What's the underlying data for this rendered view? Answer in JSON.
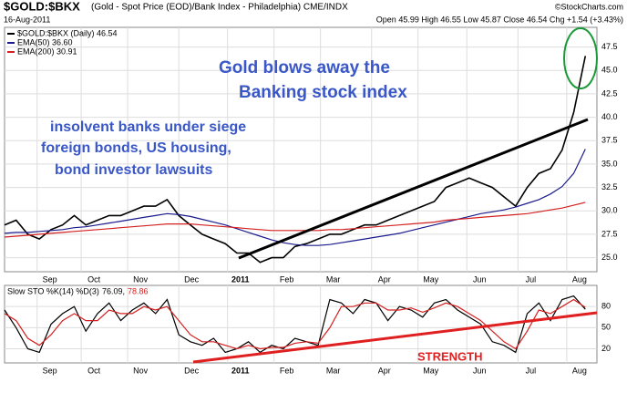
{
  "header": {
    "title": "$GOLD:$BKX",
    "subtitle": "(Gold - Spot Price (EOD)/Bank Index - Philadelphia) CME/INDX",
    "source": "©StockCharts.com",
    "date": "16-Aug-2011",
    "quote": "Open 45.99  High 46.55  Low 45.87  Close 46.54  Chg +1.54 (+3.43%)"
  },
  "chart_data": [
    {
      "type": "line",
      "annotations": [
        "Gold blows away the",
        "Banking stock index",
        "insolvent banks under siege",
        "foreign bonds, US housing,",
        "bond investor lawsuits"
      ],
      "x": [
        0,
        5,
        10,
        15,
        20,
        25,
        30,
        35,
        40,
        45,
        50,
        55,
        60,
        65,
        70,
        75,
        80,
        85,
        90,
        95,
        100,
        105,
        110,
        115,
        120,
        125,
        130,
        135,
        140,
        145,
        150,
        155,
        160,
        165,
        170,
        175,
        180,
        185,
        190,
        195,
        200,
        205,
        210,
        215,
        220,
        225,
        230,
        235,
        240,
        245,
        250
      ],
      "xlim": [
        0,
        255
      ],
      "xticks": [
        {
          "value": 14,
          "label": "Sep"
        },
        {
          "value": 33,
          "label": "Oct"
        },
        {
          "value": 53,
          "label": "Nov"
        },
        {
          "value": 75,
          "label": "Dec"
        },
        {
          "value": 96,
          "label": "2011"
        },
        {
          "value": 116,
          "label": "Feb"
        },
        {
          "value": 136,
          "label": "Mar"
        },
        {
          "value": 158,
          "label": "Apr"
        },
        {
          "value": 178,
          "label": "May"
        },
        {
          "value": 199,
          "label": "Jun"
        },
        {
          "value": 221,
          "label": "Jul"
        },
        {
          "value": 242,
          "label": "Aug"
        }
      ],
      "ylim": [
        23.5,
        49.6
      ],
      "yticks": [
        {
          "value": 25,
          "label": "25.0"
        },
        27.5,
        {
          "value": 30,
          "label": "30.0"
        },
        32.5,
        {
          "value": 35,
          "label": "35.0"
        },
        37.5,
        {
          "value": 40,
          "label": "40.0"
        },
        42.5,
        {
          "value": 45,
          "label": "45.0"
        },
        47.5
      ],
      "grid": true,
      "series": [
        {
          "name": "$GOLD:$BKX (Daily) 46.54",
          "color": "#000000",
          "values": [
            28.5,
            29.0,
            27.5,
            27.0,
            28.0,
            28.5,
            29.5,
            28.5,
            29.0,
            29.5,
            29.5,
            30.0,
            30.5,
            30.5,
            31.2,
            29.5,
            28.5,
            27.5,
            27.0,
            26.5,
            25.5,
            25.5,
            24.5,
            25.0,
            25.0,
            26.2,
            26.5,
            27.0,
            27.5,
            27.5,
            28.0,
            28.5,
            28.5,
            29.0,
            29.5,
            30.0,
            30.5,
            31.0,
            32.5,
            33.0,
            33.5,
            33.0,
            32.5,
            31.5,
            30.5,
            32.5,
            34.0,
            34.5,
            36.5,
            40.5,
            46.54
          ]
        },
        {
          "name": "EMA(50) 36.60",
          "color": "#1a1a8c",
          "values": [
            27.6,
            27.7,
            27.7,
            27.8,
            27.9,
            28.0,
            28.2,
            28.3,
            28.5,
            28.7,
            28.9,
            29.1,
            29.3,
            29.5,
            29.7,
            29.6,
            29.4,
            29.1,
            28.8,
            28.5,
            28.1,
            27.7,
            27.3,
            26.9,
            26.6,
            26.4,
            26.3,
            26.3,
            26.4,
            26.6,
            26.8,
            27.0,
            27.2,
            27.4,
            27.6,
            27.9,
            28.2,
            28.5,
            28.8,
            29.1,
            29.4,
            29.7,
            29.9,
            30.1,
            30.4,
            30.8,
            31.2,
            31.8,
            32.6,
            34.0,
            36.6
          ]
        },
        {
          "name": "EMA(200) 30.91",
          "color": "#d42020",
          "values": [
            27.2,
            27.3,
            27.4,
            27.5,
            27.6,
            27.7,
            27.8,
            27.9,
            28.0,
            28.1,
            28.2,
            28.3,
            28.4,
            28.5,
            28.6,
            28.6,
            28.6,
            28.5,
            28.4,
            28.3,
            28.2,
            28.1,
            28.0,
            27.9,
            27.9,
            27.9,
            27.9,
            27.9,
            28.0,
            28.0,
            28.1,
            28.2,
            28.3,
            28.4,
            28.5,
            28.6,
            28.7,
            28.8,
            29.0,
            29.1,
            29.2,
            29.3,
            29.4,
            29.5,
            29.6,
            29.7,
            29.9,
            30.1,
            30.3,
            30.6,
            30.91
          ]
        }
      ]
    },
    {
      "type": "line",
      "label": "Slow STO %K(14) %D(3)",
      "annotations": [
        "STRENGTH"
      ],
      "x": [
        0,
        5,
        10,
        15,
        20,
        25,
        30,
        35,
        40,
        45,
        50,
        55,
        60,
        65,
        70,
        75,
        80,
        85,
        90,
        95,
        100,
        105,
        110,
        115,
        120,
        125,
        130,
        135,
        140,
        145,
        150,
        155,
        160,
        165,
        170,
        175,
        180,
        185,
        190,
        195,
        200,
        205,
        210,
        215,
        220,
        225,
        230,
        235,
        240,
        245,
        250
      ],
      "xlim": [
        0,
        255
      ],
      "xticks": [
        {
          "value": 14,
          "label": "Sep"
        },
        {
          "value": 33,
          "label": "Oct"
        },
        {
          "value": 53,
          "label": "Nov"
        },
        {
          "value": 75,
          "label": "Dec"
        },
        {
          "value": 96,
          "label": "2011"
        },
        {
          "value": 116,
          "label": "Feb"
        },
        {
          "value": 136,
          "label": "Mar"
        },
        {
          "value": 158,
          "label": "Apr"
        },
        {
          "value": 178,
          "label": "May"
        },
        {
          "value": 199,
          "label": "Jun"
        },
        {
          "value": 221,
          "label": "Jul"
        },
        {
          "value": 242,
          "label": "Aug"
        }
      ],
      "ylim": [
        0,
        110
      ],
      "yticks": [
        20,
        50,
        80
      ],
      "grid": true,
      "series": [
        {
          "name": "76.09,",
          "color": "#000000",
          "values": [
            75,
            50,
            20,
            15,
            55,
            70,
            80,
            45,
            70,
            85,
            60,
            75,
            85,
            70,
            90,
            40,
            30,
            25,
            35,
            15,
            20,
            30,
            15,
            25,
            20,
            35,
            30,
            25,
            90,
            85,
            70,
            90,
            85,
            60,
            80,
            75,
            65,
            85,
            90,
            75,
            65,
            55,
            30,
            25,
            15,
            70,
            85,
            60,
            90,
            95,
            76.09
          ]
        },
        {
          "name": "78.86",
          "color": "#d42020",
          "values": [
            70,
            60,
            35,
            25,
            40,
            60,
            70,
            60,
            60,
            75,
            70,
            70,
            80,
            75,
            80,
            60,
            40,
            30,
            30,
            25,
            20,
            25,
            20,
            22,
            22,
            28,
            30,
            28,
            50,
            80,
            80,
            85,
            85,
            75,
            75,
            78,
            72,
            78,
            85,
            80,
            70,
            60,
            45,
            30,
            20,
            45,
            75,
            70,
            80,
            90,
            78.86
          ]
        }
      ]
    }
  ]
}
